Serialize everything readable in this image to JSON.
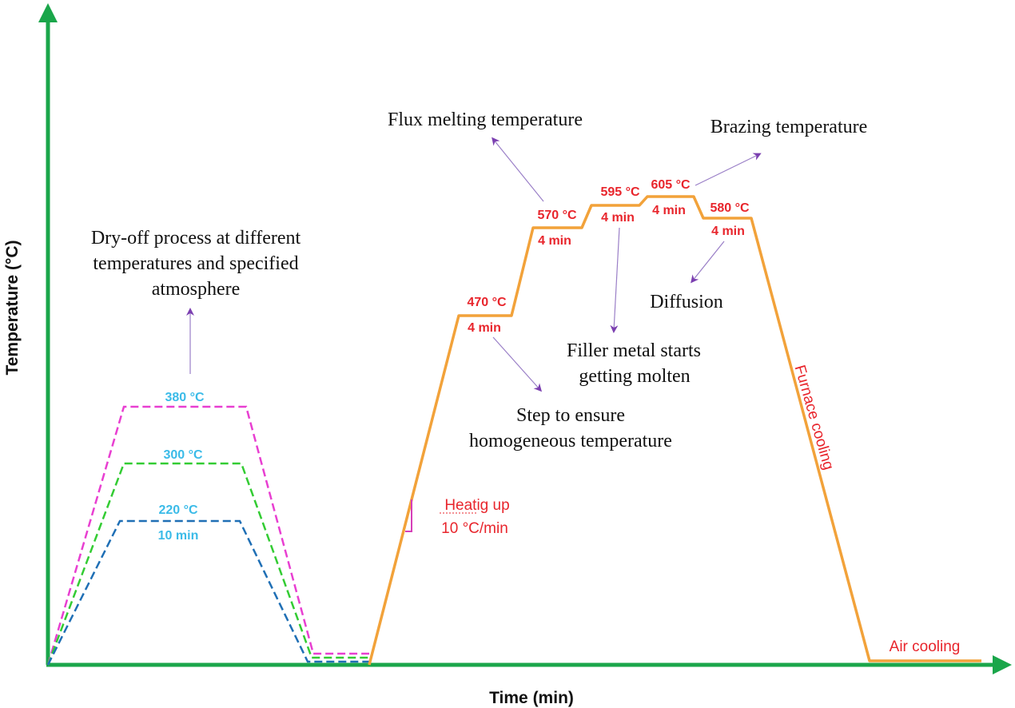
{
  "axes": {
    "x_label": "Time (min)",
    "y_label": "Temperature (°C)"
  },
  "dry_off": {
    "title": [
      "Dry-off process at different",
      "temperatures and specified",
      "atmosphere"
    ],
    "labels": {
      "t380": "380 °C",
      "t300": "300 °C",
      "t220": "220 °C",
      "time": "10 min"
    }
  },
  "brazing": {
    "steps": [
      {
        "temp": "470 °C",
        "time": "4 min"
      },
      {
        "temp": "570 °C",
        "time": "4 min"
      },
      {
        "temp": "595 °C",
        "time": "4 min"
      },
      {
        "temp": "605 °C",
        "time": "4 min"
      },
      {
        "temp": "580 °C",
        "time": "4 min"
      }
    ],
    "heating": [
      "Heatig up",
      "10 °C/min"
    ],
    "furnace_cooling": "Furnace cooling",
    "air_cooling": "Air cooling"
  },
  "annotations": {
    "flux": "Flux melting temperature",
    "brazing": "Brazing temperature",
    "diffusion": "Diffusion",
    "filler": [
      "Filler metal starts",
      "getting molten"
    ],
    "homogeneous": [
      "Step to ensure",
      "homogeneous temperature"
    ]
  },
  "colors": {
    "axis": "#1aa64a",
    "profile": "#f2a23a",
    "dry_380": "#e83fd1",
    "dry_300": "#33cc33",
    "dry_220": "#1f6fb5",
    "dry_label": "#3bbbe8",
    "step_label": "#e8252c",
    "arrow": "#7b3fb0",
    "arrow_line": "#9a7fc7",
    "slope_marker": "#d63fb8"
  }
}
